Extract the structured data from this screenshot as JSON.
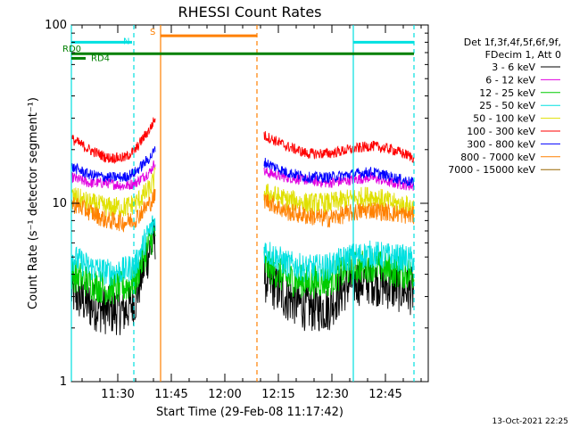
{
  "chart_data": {
    "type": "line",
    "title": "RHESSI Count Rates",
    "xlabel": "Start Time (29-Feb-08 11:17:42)",
    "ylabel": "Count Rate (s⁻¹ detector segment⁻¹)",
    "yscale": "log",
    "ylim": [
      1,
      100
    ],
    "xlim_minutes_after_start": [
      0,
      100
    ],
    "x_ticks": [
      {
        "label": "11:30",
        "t": 13
      },
      {
        "label": "11:45",
        "t": 28
      },
      {
        "label": "12:00",
        "t": 43
      },
      {
        "label": "12:15",
        "t": 58
      },
      {
        "label": "12:30",
        "t": 73
      },
      {
        "label": "12:45",
        "t": 88
      }
    ],
    "y_ticks": [
      {
        "label": "1",
        "v": 1
      },
      {
        "label": "10",
        "v": 10
      },
      {
        "label": "100",
        "v": 100
      }
    ],
    "legend_header": [
      "Det 1f,3f,4f,5f,6f,9f,",
      "FDecim 1, Att 0"
    ],
    "legend_position": "right",
    "series": [
      {
        "name": "3 - 6 keV",
        "color": "#000000",
        "segments": [
          {
            "t": [
              0,
              5,
              10,
              15,
              18,
              22,
              23.5
            ],
            "v": [
              3.2,
              2.7,
              2.5,
              2.5,
              2.9,
              5.5,
              6.5
            ]
          },
          {
            "t": [
              54,
              60,
              66,
              72,
              78,
              84,
              90,
              96
            ],
            "v": [
              3.8,
              3.0,
              2.6,
              2.6,
              3.6,
              3.7,
              3.4,
              3.2
            ]
          }
        ]
      },
      {
        "name": "6 - 12 keV",
        "color": "#e000e0",
        "segments": [
          {
            "t": [
              0,
              5,
              10,
              15,
              18,
              22,
              23.5
            ],
            "v": [
              14,
              13,
              13,
              12.5,
              13,
              15,
              17
            ]
          },
          {
            "t": [
              54,
              60,
              66,
              72,
              78,
              84,
              90,
              96
            ],
            "v": [
              15,
              14,
              13.5,
              13,
              13.5,
              14,
              13,
              12.5
            ]
          }
        ]
      },
      {
        "name": "12 - 25 keV",
        "color": "#00cc00",
        "segments": [
          {
            "t": [
              0,
              5,
              10,
              15,
              18,
              22,
              23.5
            ],
            "v": [
              4.0,
              3.6,
              3.3,
              3.4,
              3.7,
              6.0,
              7.0
            ]
          },
          {
            "t": [
              54,
              60,
              66,
              72,
              78,
              84,
              90,
              96
            ],
            "v": [
              4.5,
              3.8,
              3.6,
              3.7,
              4.3,
              4.5,
              4.2,
              4.0
            ]
          }
        ]
      },
      {
        "name": "25 - 50 keV",
        "color": "#00e0e0",
        "segments": [
          {
            "t": [
              0,
              5,
              10,
              15,
              18,
              22,
              23.5
            ],
            "v": [
              5.0,
              4.4,
              4.1,
              4.2,
              4.5,
              7.0,
              8.0
            ]
          },
          {
            "t": [
              54,
              60,
              66,
              72,
              78,
              84,
              90,
              96
            ],
            "v": [
              5.5,
              4.6,
              4.3,
              4.4,
              5.0,
              5.2,
              5.0,
              4.8
            ]
          }
        ]
      },
      {
        "name": "50 - 100 keV",
        "color": "#e0e000",
        "segments": [
          {
            "t": [
              0,
              5,
              10,
              15,
              18,
              22,
              23.5
            ],
            "v": [
              11,
              10,
              9.5,
              9.5,
              10,
              12,
              14
            ]
          },
          {
            "t": [
              54,
              60,
              66,
              72,
              78,
              84,
              90,
              96
            ],
            "v": [
              11.5,
              10.5,
              10,
              10,
              10.5,
              11,
              10,
              9.5
            ]
          }
        ]
      },
      {
        "name": "100 - 300 keV",
        "color": "#ff0000",
        "segments": [
          {
            "t": [
              0,
              5,
              10,
              15,
              18,
              22,
              23.5
            ],
            "v": [
              23,
              20,
              18,
              18,
              20,
              26,
              30
            ]
          },
          {
            "t": [
              54,
              60,
              66,
              72,
              78,
              84,
              90,
              96
            ],
            "v": [
              24,
              21,
              19,
              19,
              20,
              21,
              20,
              18
            ]
          }
        ]
      },
      {
        "name": "300 - 800 keV",
        "color": "#0000ff",
        "segments": [
          {
            "t": [
              0,
              5,
              10,
              15,
              18,
              22,
              23.5
            ],
            "v": [
              16,
              14.5,
              14,
              14,
              15,
              18,
              20
            ]
          },
          {
            "t": [
              54,
              60,
              66,
              72,
              78,
              84,
              90,
              96
            ],
            "v": [
              17,
              15,
              14,
              14,
              14.5,
              15,
              14,
              13
            ]
          }
        ]
      },
      {
        "name": "800 - 7000 keV",
        "color": "#ff8000",
        "segments": [
          {
            "t": [
              0,
              5,
              10,
              15,
              18,
              22,
              23.5
            ],
            "v": [
              10,
              9,
              8,
              7.8,
              8.2,
              10,
              11
            ]
          },
          {
            "t": [
              54,
              60,
              66,
              72,
              78,
              84,
              90,
              96
            ],
            "v": [
              10.5,
              9,
              8.5,
              8.2,
              8.8,
              9.2,
              8.8,
              8.5
            ]
          }
        ]
      },
      {
        "name": "7000 - 15000 keV",
        "color": "#996600",
        "segments": []
      }
    ],
    "annotations": [
      {
        "label": "N",
        "color": "#00e0e0",
        "t_start": 0,
        "t_end": 17,
        "v": 80
      },
      {
        "label": "S",
        "color": "#ff8000",
        "t_start": 25,
        "t_end": 52,
        "v": 87
      },
      {
        "label": "RD0",
        "color": "#008000",
        "t_start": 0,
        "t_end": 96,
        "v": 69
      },
      {
        "label": "RD4",
        "color": "#008000",
        "t_start": 0,
        "t_end": 4,
        "v": 65
      },
      {
        "label": "",
        "color": "#00e0e0",
        "t_start": 79,
        "t_end": 96,
        "v": 80
      }
    ],
    "vlines": [
      {
        "t": 0,
        "color": "#00e0e0",
        "style": "solid"
      },
      {
        "t": 17.5,
        "color": "#00e0e0",
        "style": "dashed"
      },
      {
        "t": 25,
        "color": "#ff8000",
        "style": "solid"
      },
      {
        "t": 52,
        "color": "#ff8000",
        "style": "dashed"
      },
      {
        "t": 79,
        "color": "#00e0e0",
        "style": "solid"
      },
      {
        "t": 96,
        "color": "#00e0e0",
        "style": "dashed"
      }
    ],
    "footer_date": "13-Oct-2021 22:25"
  }
}
